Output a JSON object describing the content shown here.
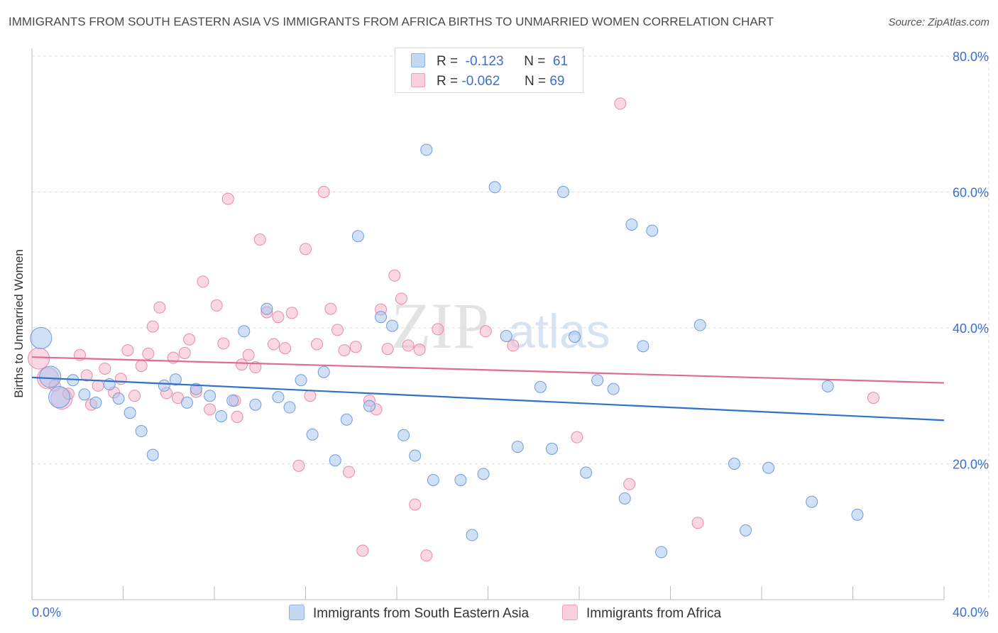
{
  "title": "IMMIGRANTS FROM SOUTH EASTERN ASIA VS IMMIGRANTS FROM AFRICA BIRTHS TO UNMARRIED WOMEN CORRELATION CHART",
  "source": "Source: ZipAtlas.com",
  "watermark": {
    "zip": "ZIP",
    "atlas": "atlas"
  },
  "legend": {
    "r_label": "R =",
    "n_label": "N =",
    "series1": {
      "r": "-0.123",
      "n": "61"
    },
    "series2": {
      "r": "-0.062",
      "n": "69"
    }
  },
  "colors": {
    "series1_fill": "#a9c6f0",
    "series1_stroke": "#6f9bdc",
    "series1_line": "#2f72cc",
    "series2_fill": "#f5b8cb",
    "series2_stroke": "#e98aa8",
    "series2_line": "#e06b93",
    "tick_label": "#3a6fd1",
    "grid": "#dddddd"
  },
  "chart_data": {
    "type": "scatter",
    "title": "IMMIGRANTS FROM SOUTH EASTERN ASIA VS IMMIGRANTS FROM AFRICA BIRTHS TO UNMARRIED WOMEN CORRELATION CHART",
    "xlabel": "",
    "ylabel": "Births to Unmarried Women",
    "xlim": [
      0,
      40
    ],
    "ylim": [
      0,
      80
    ],
    "x_tick_labels": [
      "0.0%",
      "40.0%"
    ],
    "y_ticks": [
      20,
      40,
      60,
      80
    ],
    "y_tick_labels": [
      "20.0%",
      "40.0%",
      "60.0%",
      "80.0%"
    ],
    "grid": true,
    "legend_position": "top-center",
    "series": [
      {
        "name": "Immigrants from South Eastern Asia",
        "trend": {
          "x": [
            0,
            40
          ],
          "y": [
            32.7,
            26.4
          ]
        },
        "points": [
          {
            "x": 0.4,
            "y": 38.5,
            "big": true
          },
          {
            "x": 0.8,
            "y": 32.8,
            "big": true
          },
          {
            "x": 1.2,
            "y": 29.8,
            "big": true
          },
          {
            "x": 1.8,
            "y": 32.3
          },
          {
            "x": 2.3,
            "y": 30.2
          },
          {
            "x": 2.8,
            "y": 29.0
          },
          {
            "x": 3.4,
            "y": 31.7
          },
          {
            "x": 3.8,
            "y": 29.6
          },
          {
            "x": 4.3,
            "y": 27.5
          },
          {
            "x": 4.8,
            "y": 24.8
          },
          {
            "x": 5.3,
            "y": 21.3
          },
          {
            "x": 5.8,
            "y": 31.5
          },
          {
            "x": 6.3,
            "y": 32.4
          },
          {
            "x": 6.8,
            "y": 29.0
          },
          {
            "x": 7.2,
            "y": 31.0
          },
          {
            "x": 7.8,
            "y": 30.0
          },
          {
            "x": 8.3,
            "y": 27.0
          },
          {
            "x": 8.8,
            "y": 29.3
          },
          {
            "x": 9.3,
            "y": 39.5
          },
          {
            "x": 9.8,
            "y": 28.7
          },
          {
            "x": 10.3,
            "y": 42.8
          },
          {
            "x": 10.8,
            "y": 29.8
          },
          {
            "x": 11.3,
            "y": 28.3
          },
          {
            "x": 11.8,
            "y": 32.3
          },
          {
            "x": 12.3,
            "y": 24.3
          },
          {
            "x": 12.8,
            "y": 33.5
          },
          {
            "x": 13.3,
            "y": 20.5
          },
          {
            "x": 13.8,
            "y": 26.5
          },
          {
            "x": 14.3,
            "y": 53.5
          },
          {
            "x": 14.8,
            "y": 28.5
          },
          {
            "x": 15.3,
            "y": 41.6
          },
          {
            "x": 15.8,
            "y": 40.3
          },
          {
            "x": 16.3,
            "y": 24.2
          },
          {
            "x": 16.8,
            "y": 21.2
          },
          {
            "x": 17.3,
            "y": 66.2
          },
          {
            "x": 17.6,
            "y": 17.6
          },
          {
            "x": 18.8,
            "y": 17.6
          },
          {
            "x": 19.3,
            "y": 9.5
          },
          {
            "x": 19.8,
            "y": 18.5
          },
          {
            "x": 20.3,
            "y": 60.7
          },
          {
            "x": 20.8,
            "y": 38.8
          },
          {
            "x": 21.3,
            "y": 22.5
          },
          {
            "x": 22.3,
            "y": 31.3
          },
          {
            "x": 22.8,
            "y": 22.2
          },
          {
            "x": 23.3,
            "y": 60.0
          },
          {
            "x": 23.8,
            "y": 38.7
          },
          {
            "x": 24.3,
            "y": 18.7
          },
          {
            "x": 24.8,
            "y": 32.3
          },
          {
            "x": 25.5,
            "y": 31.0
          },
          {
            "x": 26.0,
            "y": 14.9
          },
          {
            "x": 26.3,
            "y": 55.2
          },
          {
            "x": 26.8,
            "y": 37.3
          },
          {
            "x": 27.2,
            "y": 54.3
          },
          {
            "x": 27.6,
            "y": 7.0
          },
          {
            "x": 29.3,
            "y": 40.4
          },
          {
            "x": 30.8,
            "y": 20.0
          },
          {
            "x": 31.3,
            "y": 10.2
          },
          {
            "x": 32.3,
            "y": 19.4
          },
          {
            "x": 34.2,
            "y": 14.4
          },
          {
            "x": 34.9,
            "y": 31.4
          },
          {
            "x": 36.2,
            "y": 12.5
          }
        ]
      },
      {
        "name": "Immigrants from Africa",
        "trend": {
          "x": [
            0,
            40
          ],
          "y": [
            35.7,
            31.9
          ]
        },
        "points": [
          {
            "x": 0.3,
            "y": 35.5,
            "big": true
          },
          {
            "x": 0.7,
            "y": 32.6,
            "big": true
          },
          {
            "x": 1.0,
            "y": 31.5
          },
          {
            "x": 1.3,
            "y": 29.6,
            "big": true
          },
          {
            "x": 1.6,
            "y": 30.3
          },
          {
            "x": 2.1,
            "y": 36.0
          },
          {
            "x": 2.6,
            "y": 28.7
          },
          {
            "x": 2.9,
            "y": 31.5
          },
          {
            "x": 3.2,
            "y": 34.0
          },
          {
            "x": 3.6,
            "y": 30.5
          },
          {
            "x": 3.9,
            "y": 32.5
          },
          {
            "x": 4.2,
            "y": 36.7
          },
          {
            "x": 4.5,
            "y": 30.0
          },
          {
            "x": 4.8,
            "y": 34.4
          },
          {
            "x": 5.1,
            "y": 36.2
          },
          {
            "x": 5.3,
            "y": 40.2
          },
          {
            "x": 5.6,
            "y": 43.0
          },
          {
            "x": 5.9,
            "y": 30.4
          },
          {
            "x": 6.2,
            "y": 35.6
          },
          {
            "x": 6.4,
            "y": 29.7
          },
          {
            "x": 6.7,
            "y": 36.3
          },
          {
            "x": 6.9,
            "y": 38.3
          },
          {
            "x": 7.2,
            "y": 30.6
          },
          {
            "x": 7.5,
            "y": 46.8
          },
          {
            "x": 7.8,
            "y": 28.0
          },
          {
            "x": 8.1,
            "y": 43.3
          },
          {
            "x": 8.4,
            "y": 37.7
          },
          {
            "x": 8.6,
            "y": 59.0
          },
          {
            "x": 8.9,
            "y": 29.3
          },
          {
            "x": 9.2,
            "y": 34.6
          },
          {
            "x": 9.5,
            "y": 36.0
          },
          {
            "x": 9.8,
            "y": 34.2
          },
          {
            "x": 10.0,
            "y": 53.0
          },
          {
            "x": 10.3,
            "y": 42.3
          },
          {
            "x": 10.6,
            "y": 37.6
          },
          {
            "x": 10.8,
            "y": 41.6
          },
          {
            "x": 11.1,
            "y": 37.0
          },
          {
            "x": 11.4,
            "y": 42.2
          },
          {
            "x": 11.7,
            "y": 19.7
          },
          {
            "x": 12.0,
            "y": 51.6
          },
          {
            "x": 12.2,
            "y": 30.0
          },
          {
            "x": 12.5,
            "y": 37.6
          },
          {
            "x": 12.8,
            "y": 60.0
          },
          {
            "x": 13.1,
            "y": 42.8
          },
          {
            "x": 13.4,
            "y": 39.7
          },
          {
            "x": 13.7,
            "y": 36.7
          },
          {
            "x": 13.9,
            "y": 18.8
          },
          {
            "x": 14.2,
            "y": 37.2
          },
          {
            "x": 14.5,
            "y": 7.2
          },
          {
            "x": 14.8,
            "y": 29.3
          },
          {
            "x": 15.1,
            "y": 28.0
          },
          {
            "x": 15.3,
            "y": 42.7
          },
          {
            "x": 15.6,
            "y": 36.9
          },
          {
            "x": 15.9,
            "y": 47.7
          },
          {
            "x": 16.2,
            "y": 44.3
          },
          {
            "x": 16.5,
            "y": 37.4
          },
          {
            "x": 16.8,
            "y": 14.0
          },
          {
            "x": 17.3,
            "y": 6.5
          },
          {
            "x": 17.8,
            "y": 39.8
          },
          {
            "x": 19.9,
            "y": 39.5
          },
          {
            "x": 21.1,
            "y": 37.4
          },
          {
            "x": 23.9,
            "y": 23.9
          },
          {
            "x": 25.8,
            "y": 73.0
          },
          {
            "x": 26.2,
            "y": 17.0
          },
          {
            "x": 29.2,
            "y": 11.3
          },
          {
            "x": 36.9,
            "y": 29.7
          },
          {
            "x": 17.0,
            "y": 36.8
          },
          {
            "x": 2.4,
            "y": 33.0
          },
          {
            "x": 9.0,
            "y": 26.9
          }
        ]
      }
    ]
  }
}
